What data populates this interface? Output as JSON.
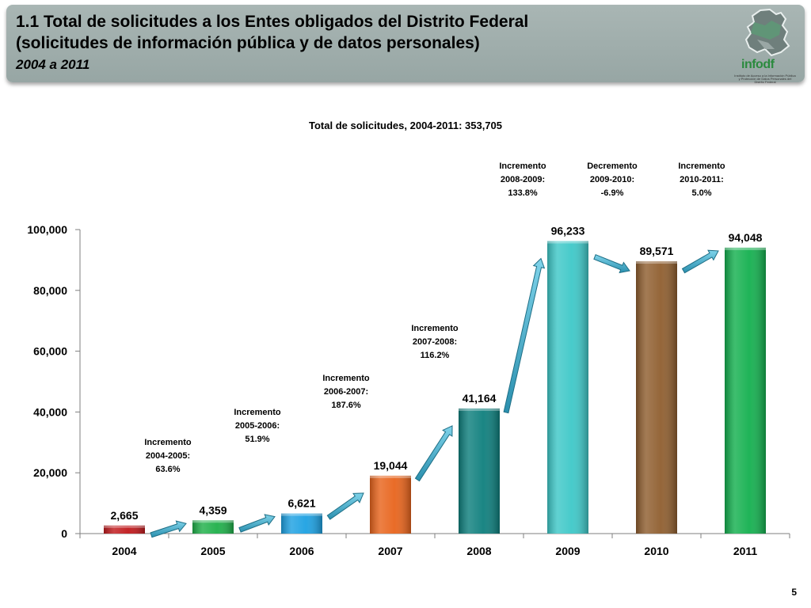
{
  "header": {
    "title_line1": "1.1 Total de solicitudes a los Entes obligados del Distrito Federal",
    "title_line2": "(solicitudes de información pública y de datos personales)",
    "period": "2004 a 2011",
    "logo_text": "info",
    "logo_suffix": "df",
    "logo_caption": "Instituto de Acceso a la Información Pública y Protección de Datos Personales del Distrito Federal"
  },
  "page_number": "5",
  "chart_data": {
    "type": "bar",
    "title": "Total de solicitudes, 2004-2011: 353,705",
    "categories": [
      "2004",
      "2005",
      "2006",
      "2007",
      "2008",
      "2009",
      "2010",
      "2011"
    ],
    "values": [
      2665,
      4359,
      6621,
      19044,
      41164,
      96233,
      89571,
      94048
    ],
    "value_labels": [
      "2,665",
      "4,359",
      "6,621",
      "19,044",
      "41,164",
      "96,233",
      "89,571",
      "94,048"
    ],
    "colors": [
      "#c0191c",
      "#1fb04a",
      "#1da1e2",
      "#e8641c",
      "#0e7f7d",
      "#3ec8c8",
      "#8f5e2f",
      "#14b04f"
    ],
    "ylim": [
      0,
      100000
    ],
    "yticks": [
      0,
      20000,
      40000,
      60000,
      80000,
      100000
    ],
    "ytick_labels": [
      "0",
      "20,000",
      "40,000",
      "60,000",
      "80,000",
      "100,000"
    ],
    "grid": false,
    "annotations": [
      {
        "lines": [
          "Incremento",
          "2004-2005:",
          "63.6%"
        ]
      },
      {
        "lines": [
          "Incremento",
          "2005-2006:",
          "51.9%"
        ]
      },
      {
        "lines": [
          "Incremento",
          "2006-2007:",
          "187.6%"
        ]
      },
      {
        "lines": [
          "Incremento",
          "2007-2008:",
          "116.2%"
        ]
      },
      {
        "lines": [
          "Incremento",
          "2008-2009:",
          "133.8%"
        ]
      },
      {
        "lines": [
          "Decremento",
          "2009-2010:",
          "-6.9%"
        ]
      },
      {
        "lines": [
          "Incremento",
          "2010-2011:",
          "5.0%"
        ]
      }
    ],
    "arrow_color": "#3aa6c4"
  }
}
